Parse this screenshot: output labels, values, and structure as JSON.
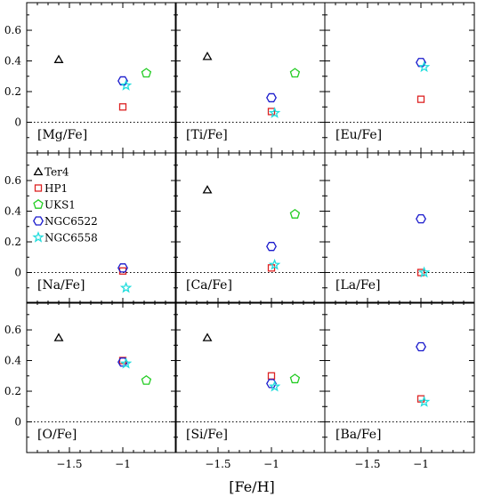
{
  "chart_data": {
    "type": "scatter",
    "xlabel": "[Fe/H]",
    "xlim": [
      -1.9,
      -0.5
    ],
    "ylim": [
      -0.2,
      0.78
    ],
    "xticks": [
      -1.5,
      -1
    ],
    "xtick_labels": [
      "−1.5",
      "−1"
    ],
    "yticks": [
      0,
      0.2,
      0.4,
      0.6
    ],
    "ytick_labels": [
      "0",
      "0.2",
      "0.4",
      "0.6"
    ],
    "zero_line": "dotted",
    "series": [
      {
        "name": "Ter4",
        "marker": "triangle",
        "color": "#000000"
      },
      {
        "name": "HP1",
        "marker": "square",
        "color": "#dd2222"
      },
      {
        "name": "UKS1",
        "marker": "pentagon",
        "color": "#22cc22"
      },
      {
        "name": "NGC6522",
        "marker": "hexagon",
        "color": "#1a1acc"
      },
      {
        "name": "NGC6558",
        "marker": "star",
        "color": "#22dddd"
      }
    ],
    "panels": [
      {
        "label": "[Mg/Fe]",
        "points": [
          {
            "series": "Ter4",
            "x": -1.6,
            "y": 0.41
          },
          {
            "series": "HP1",
            "x": -1.0,
            "y": 0.1
          },
          {
            "series": "UKS1",
            "x": -0.78,
            "y": 0.32
          },
          {
            "series": "NGC6522",
            "x": -1.0,
            "y": 0.27
          },
          {
            "series": "NGC6558",
            "x": -0.97,
            "y": 0.24
          }
        ]
      },
      {
        "label": "[Ti/Fe]",
        "points": [
          {
            "series": "Ter4",
            "x": -1.6,
            "y": 0.43
          },
          {
            "series": "HP1",
            "x": -1.0,
            "y": 0.07
          },
          {
            "series": "UKS1",
            "x": -0.78,
            "y": 0.32
          },
          {
            "series": "NGC6522",
            "x": -1.0,
            "y": 0.16
          },
          {
            "series": "NGC6558",
            "x": -0.97,
            "y": 0.06
          }
        ]
      },
      {
        "label": "[Eu/Fe]",
        "points": [
          {
            "series": "HP1",
            "x": -1.0,
            "y": 0.15
          },
          {
            "series": "NGC6522",
            "x": -1.0,
            "y": 0.39
          },
          {
            "series": "NGC6558",
            "x": -0.97,
            "y": 0.36
          }
        ]
      },
      {
        "label": "[Na/Fe]",
        "legend": true,
        "points": [
          {
            "series": "HP1",
            "x": -1.0,
            "y": 0.01
          },
          {
            "series": "NGC6522",
            "x": -1.0,
            "y": 0.03
          },
          {
            "series": "NGC6558",
            "x": -0.97,
            "y": -0.1
          }
        ]
      },
      {
        "label": "[Ca/Fe]",
        "points": [
          {
            "series": "Ter4",
            "x": -1.6,
            "y": 0.54
          },
          {
            "series": "HP1",
            "x": -1.0,
            "y": 0.03
          },
          {
            "series": "UKS1",
            "x": -0.78,
            "y": 0.38
          },
          {
            "series": "NGC6522",
            "x": -1.0,
            "y": 0.17
          },
          {
            "series": "NGC6558",
            "x": -0.97,
            "y": 0.05
          }
        ]
      },
      {
        "label": "[La/Fe]",
        "points": [
          {
            "series": "HP1",
            "x": -1.0,
            "y": 0.0
          },
          {
            "series": "NGC6522",
            "x": -1.0,
            "y": 0.35
          },
          {
            "series": "NGC6558",
            "x": -0.97,
            "y": 0.0
          }
        ]
      },
      {
        "label": "[O/Fe]",
        "points": [
          {
            "series": "Ter4",
            "x": -1.6,
            "y": 0.55
          },
          {
            "series": "HP1",
            "x": -1.0,
            "y": 0.4
          },
          {
            "series": "UKS1",
            "x": -0.78,
            "y": 0.27
          },
          {
            "series": "NGC6522",
            "x": -1.0,
            "y": 0.39
          },
          {
            "series": "NGC6558",
            "x": -0.97,
            "y": 0.38
          }
        ]
      },
      {
        "label": "[Si/Fe]",
        "points": [
          {
            "series": "Ter4",
            "x": -1.6,
            "y": 0.55
          },
          {
            "series": "HP1",
            "x": -1.0,
            "y": 0.3
          },
          {
            "series": "UKS1",
            "x": -0.78,
            "y": 0.28
          },
          {
            "series": "NGC6522",
            "x": -1.0,
            "y": 0.25
          },
          {
            "series": "NGC6558",
            "x": -0.97,
            "y": 0.23
          }
        ]
      },
      {
        "label": "[Ba/Fe]",
        "points": [
          {
            "series": "HP1",
            "x": -1.0,
            "y": 0.15
          },
          {
            "series": "NGC6522",
            "x": -1.0,
            "y": 0.49
          },
          {
            "series": "NGC6558",
            "x": -0.97,
            "y": 0.13
          }
        ]
      }
    ]
  }
}
